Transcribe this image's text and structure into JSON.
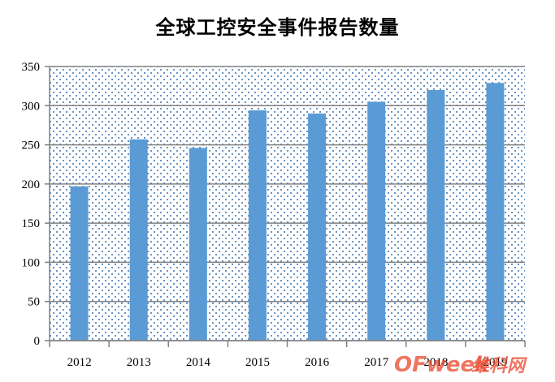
{
  "chart_data": {
    "type": "bar",
    "title": "全球工控安全事件报告数量",
    "xlabel": "",
    "ylabel": "",
    "categories": [
      "2012",
      "2013",
      "2014",
      "2015",
      "2016",
      "2017",
      "2018",
      "2019"
    ],
    "values": [
      197,
      257,
      246,
      294,
      290,
      305,
      320,
      329
    ],
    "ylim": [
      0,
      350
    ],
    "yticks": [
      0,
      50,
      100,
      150,
      200,
      250,
      300,
      350
    ],
    "grid": true,
    "bar_color": "#5b9bd5",
    "plot_background": "dotted"
  },
  "watermark": {
    "brand": "OFweek",
    "suffix": "维科网"
  }
}
